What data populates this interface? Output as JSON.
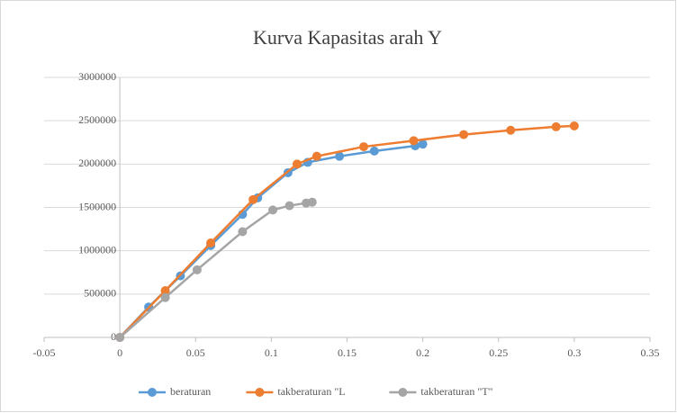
{
  "chart_data": {
    "type": "line",
    "title": "Kurva Kapasitas arah Y",
    "series": [
      {
        "name": "beraturan",
        "color": "#5b9bd5",
        "x": [
          0,
          0.019,
          0.04,
          0.06,
          0.081,
          0.091,
          0.111,
          0.124,
          0.145,
          0.168,
          0.195,
          0.2
        ],
        "values": [
          0,
          350000,
          710000,
          1060000,
          1420000,
          1610000,
          1900000,
          2020000,
          2090000,
          2150000,
          2210000,
          2230000
        ]
      },
      {
        "name": "takberaturan \"L",
        "color": "#ed7d31",
        "x": [
          0,
          0.03,
          0.06,
          0.088,
          0.117,
          0.13,
          0.161,
          0.194,
          0.227,
          0.258,
          0.288,
          0.3
        ],
        "values": [
          0,
          540000,
          1090000,
          1590000,
          2000000,
          2090000,
          2200000,
          2270000,
          2340000,
          2390000,
          2430000,
          2440000
        ]
      },
      {
        "name": "takberaturan \"T\"",
        "color": "#a5a5a5",
        "x": [
          0,
          0.03,
          0.051,
          0.081,
          0.101,
          0.112,
          0.123,
          0.127
        ],
        "values": [
          0,
          460000,
          780000,
          1220000,
          1470000,
          1520000,
          1550000,
          1560000
        ]
      }
    ],
    "xlim": [
      -0.05,
      0.35
    ],
    "xticks": [
      -0.05,
      0,
      0.05,
      0.1,
      0.15,
      0.2,
      0.25,
      0.3,
      0.35
    ],
    "ylim": [
      0,
      3000000
    ],
    "yticks": [
      0,
      500000,
      1000000,
      1500000,
      2000000,
      2500000,
      3000000
    ],
    "grid": true,
    "legend": "bottom"
  }
}
